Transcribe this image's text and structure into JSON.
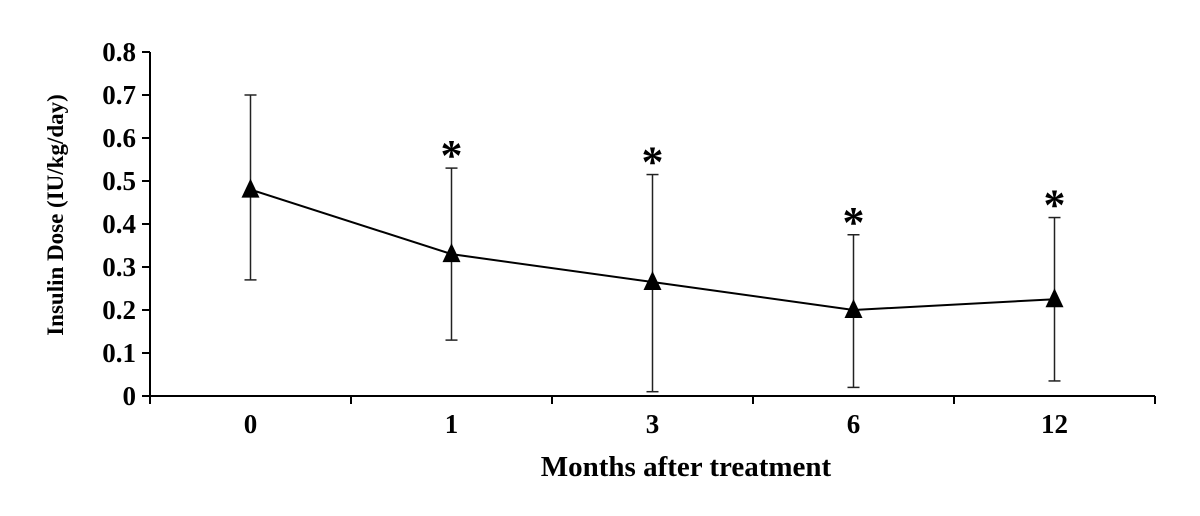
{
  "chart_data": {
    "type": "line",
    "title": "",
    "xlabel": "Months after treatment",
    "ylabel": "Insulin Dose  (IU/kg/day)",
    "categories": [
      "0",
      "1",
      "3",
      "6",
      "12"
    ],
    "series": [
      {
        "values": [
          0.48,
          0.33,
          0.265,
          0.2,
          0.225
        ],
        "error_low": [
          0.27,
          0.13,
          0.01,
          0.02,
          0.035
        ],
        "error_high": [
          0.7,
          0.53,
          0.515,
          0.375,
          0.415
        ],
        "marker": "triangle",
        "color": "#000000"
      }
    ],
    "significance": [
      "",
      "*",
      "*",
      "*",
      "*"
    ],
    "yticks": [
      "0",
      "0.1",
      "0.2",
      "0.3",
      "0.4",
      "0.5",
      "0.6",
      "0.7",
      "0.8"
    ],
    "ylim": [
      0,
      0.8
    ],
    "grid": false,
    "legend": "none"
  }
}
